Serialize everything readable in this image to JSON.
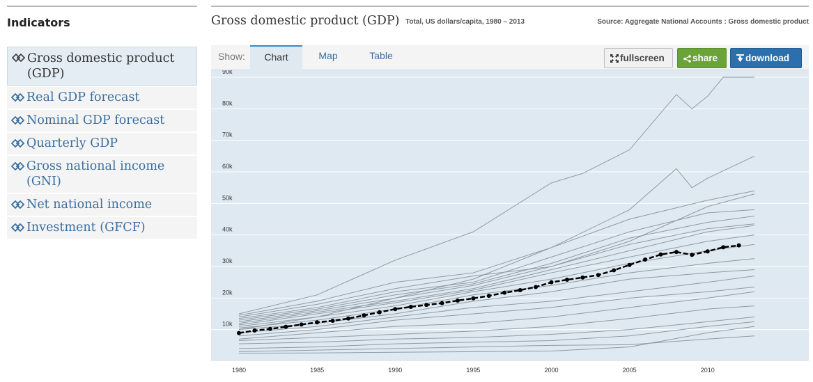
{
  "sidebar": {
    "title": "Indicators",
    "items": [
      {
        "label": "Gross domestic product (GDP)",
        "icon": "chevron-right-double-icon",
        "active": true
      },
      {
        "label": "Real GDP forecast",
        "icon": "chevron-right-double-icon"
      },
      {
        "label": "Nominal GDP forecast",
        "icon": "chevron-right-double-icon"
      },
      {
        "label": "Quarterly GDP",
        "icon": "chevron-right-double-icon"
      },
      {
        "label": "Gross national income (GNI)",
        "icon": "chevron-right-double-icon"
      },
      {
        "label": "Net national income",
        "icon": "chevron-right-double-icon"
      },
      {
        "label": "Investment (GFCF)",
        "icon": "chevron-right-double-icon"
      }
    ]
  },
  "header": {
    "title": "Gross domestic product (GDP)",
    "subtitle": "Total, US dollars/capita, 1980 – 2013",
    "source": "Source: Aggregate National Accounts : Gross domestic product"
  },
  "toolbar": {
    "show_label": "Show:",
    "tabs": [
      {
        "label": "Chart",
        "active": true
      },
      {
        "label": "Map"
      },
      {
        "label": "Table"
      }
    ],
    "fullscreen_label": "fullscreen",
    "share_label": "share",
    "download_label": "download"
  },
  "colors": {
    "accent": "#2c6fad",
    "share": "#6aa337",
    "chart_bg": "#dfe9f1",
    "series_grey": "#8e9aa4",
    "highlight": "#000000"
  },
  "chart_data": {
    "type": "line",
    "xlim": [
      1980,
      2013
    ],
    "ylim": [
      0,
      90000
    ],
    "x_ticks": [
      1980,
      1985,
      1990,
      1995,
      2000,
      2005,
      2010
    ],
    "x_tick_labels": [
      "1980",
      "1985",
      "1990",
      "1995",
      "2000",
      "2005",
      "2010"
    ],
    "y_ticks": [
      10000,
      20000,
      30000,
      40000,
      50000,
      60000,
      70000,
      80000,
      90000
    ],
    "y_tick_labels": [
      "10k",
      "20k",
      "30k",
      "40k",
      "50k",
      "60k",
      "70k",
      "80k",
      "90k"
    ],
    "grid": true,
    "highlight_series": {
      "x": [
        1980,
        1981,
        1982,
        1983,
        1984,
        1985,
        1986,
        1987,
        1988,
        1989,
        1990,
        1991,
        1992,
        1993,
        1994,
        1995,
        1996,
        1997,
        1998,
        1999,
        2000,
        2001,
        2002,
        2003,
        2004,
        2005,
        2006,
        2007,
        2008,
        2009,
        2010,
        2011,
        2012
      ],
      "values": [
        8900,
        9700,
        10200,
        10900,
        11600,
        12300,
        12800,
        13500,
        14500,
        15500,
        16500,
        17200,
        17800,
        18400,
        19200,
        19900,
        20700,
        21700,
        22500,
        23500,
        25000,
        25800,
        26500,
        27300,
        28800,
        30500,
        32200,
        33800,
        34600,
        33700,
        34800,
        36100,
        36700
      ]
    },
    "background_series": [
      {
        "x": [
          1980,
          1985,
          1990,
          1995,
          2000,
          2005,
          2010,
          2013
        ],
        "values": [
          3000,
          3500,
          4000,
          4500,
          5000,
          5200,
          7000,
          8000
        ]
      },
      {
        "x": [
          1980,
          1985,
          1990,
          1995,
          2000,
          2005,
          2010,
          2013
        ],
        "values": [
          2500,
          2600,
          2800,
          3000,
          3200,
          4500,
          9000,
          11000
        ]
      },
      {
        "x": [
          1980,
          1985,
          1990,
          1995,
          2000,
          2005,
          2010,
          2013
        ],
        "values": [
          4000,
          4500,
          5500,
          6000,
          6500,
          8000,
          11000,
          12500
        ]
      },
      {
        "x": [
          1980,
          1985,
          1990,
          1995,
          2000,
          2005,
          2010,
          2013
        ],
        "values": [
          5500,
          6000,
          7000,
          7500,
          8500,
          10000,
          12500,
          14000
        ]
      },
      {
        "x": [
          1980,
          1985,
          1990,
          1995,
          2000,
          2005,
          2010,
          2013
        ],
        "values": [
          6500,
          7500,
          8500,
          9500,
          11000,
          13500,
          16500,
          17500
        ]
      },
      {
        "x": [
          1980,
          1985,
          1990,
          1995,
          2000,
          2005,
          2010,
          2013
        ],
        "values": [
          7000,
          9000,
          11000,
          12000,
          14000,
          17000,
          20000,
          22000
        ]
      },
      {
        "x": [
          1980,
          1985,
          1990,
          1995,
          2000,
          2005,
          2010,
          2013
        ],
        "values": [
          8000,
          10000,
          13000,
          15000,
          17000,
          20000,
          22000,
          23500
        ]
      },
      {
        "x": [
          1980,
          1985,
          1990,
          1995,
          2000,
          2005,
          2010,
          2013
        ],
        "values": [
          9000,
          11000,
          14000,
          17000,
          19000,
          22000,
          25000,
          27000
        ]
      },
      {
        "x": [
          1980,
          1985,
          1990,
          1995,
          2000,
          2005,
          2010,
          2013
        ],
        "values": [
          10000,
          12000,
          15000,
          19000,
          22000,
          26000,
          28000,
          29000
        ]
      },
      {
        "x": [
          1980,
          1985,
          1990,
          1995,
          2000,
          2005,
          2010,
          2013
        ],
        "values": [
          10500,
          13000,
          16500,
          21000,
          24000,
          28000,
          31000,
          32500
        ]
      },
      {
        "x": [
          1980,
          1985,
          1990,
          1995,
          2000,
          2005,
          2010,
          2013
        ],
        "values": [
          11000,
          14000,
          17500,
          22000,
          26000,
          31000,
          35000,
          37000
        ]
      },
      {
        "x": [
          1980,
          1985,
          1990,
          1995,
          2000,
          2005,
          2010,
          2013
        ],
        "values": [
          11500,
          15000,
          18500,
          22500,
          28000,
          33000,
          38000,
          40000
        ]
      },
      {
        "x": [
          1980,
          1985,
          1990,
          1995,
          2000,
          2005,
          2010,
          2013
        ],
        "values": [
          12000,
          15500,
          19000,
          23000,
          29000,
          35000,
          41000,
          43000
        ]
      },
      {
        "x": [
          1980,
          1985,
          1990,
          1995,
          2000,
          2005,
          2010,
          2013
        ],
        "values": [
          12500,
          16000,
          20000,
          24000,
          30000,
          37000,
          42000,
          43500
        ]
      },
      {
        "x": [
          1980,
          1985,
          1990,
          1995,
          2000,
          2005,
          2010,
          2013
        ],
        "values": [
          13000,
          16500,
          21000,
          24500,
          31000,
          39000,
          44000,
          46000
        ]
      },
      {
        "x": [
          1980,
          1985,
          1990,
          1995,
          2000,
          2005,
          2010,
          2013
        ],
        "values": [
          13500,
          17000,
          22000,
          25000,
          33000,
          41000,
          47000,
          48000
        ]
      },
      {
        "x": [
          1980,
          1985,
          1990,
          1995,
          2000,
          2005,
          2010,
          2013
        ],
        "values": [
          14000,
          18000,
          23000,
          27000,
          30000,
          38000,
          49000,
          53000
        ]
      },
      {
        "x": [
          1980,
          1985,
          1990,
          1995,
          2000,
          2005,
          2010,
          2013
        ],
        "values": [
          14500,
          19000,
          25000,
          28000,
          36000,
          45000,
          51000,
          54000
        ]
      },
      {
        "x": [
          1980,
          1985,
          1990,
          1995,
          2000,
          2005,
          2008,
          2009,
          2010,
          2013
        ],
        "values": [
          10000,
          14000,
          20000,
          26000,
          36000,
          48000,
          61000,
          55000,
          58000,
          65000
        ]
      },
      {
        "x": [
          1980,
          1985,
          1990,
          1995,
          2000,
          2002,
          2005,
          2008,
          2009,
          2010,
          2011,
          2013
        ],
        "values": [
          15000,
          21000,
          32000,
          41000,
          56500,
          59500,
          67000,
          84500,
          80000,
          84000,
          90000,
          90000
        ]
      }
    ]
  }
}
